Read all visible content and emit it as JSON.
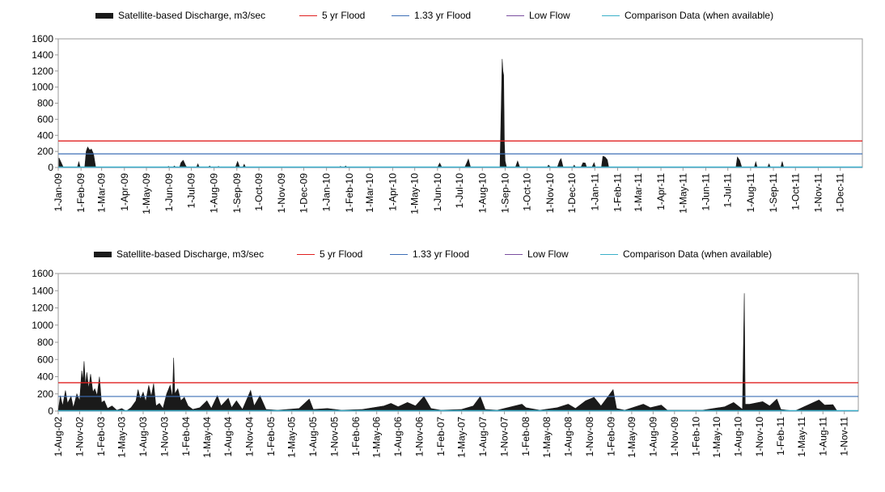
{
  "colors": {
    "discharge": "#1a1a1a",
    "flood5": "#e02020",
    "flood133": "#3d6fb6",
    "lowflow": "#7b4fa0",
    "comparison": "#3bb0c9",
    "frame": "#9a9a9a"
  },
  "legend": {
    "discharge": "Satellite-based Discharge, m3/sec",
    "flood5": "5 yr Flood",
    "flood133": "1.33 yr Flood",
    "lowflow": "Low Flow",
    "comparison": "Comparison Data (when available)"
  },
  "chart_data": [
    {
      "type": "area",
      "ylim": [
        0,
        1600
      ],
      "yticks": [
        0,
        200,
        400,
        600,
        800,
        1000,
        1200,
        1400,
        1600
      ],
      "x_start": "2009-01-01",
      "x_end": "2011-12-31",
      "xtick_labels": [
        "1-Jan-09",
        "1-Feb-09",
        "1-Mar-09",
        "1-Apr-09",
        "1-May-09",
        "1-Jun-09",
        "1-Jul-09",
        "1-Aug-09",
        "1-Sep-09",
        "1-Oct-09",
        "1-Nov-09",
        "1-Dec-09",
        "1-Jan-10",
        "1-Feb-10",
        "1-Mar-10",
        "1-Apr-10",
        "1-May-10",
        "1-Jun-10",
        "1-Jul-10",
        "1-Aug-10",
        "1-Sep-10",
        "1-Oct-10",
        "1-Nov-10",
        "1-Dec-10",
        "1-Jan-11",
        "1-Feb-11",
        "1-Mar-11",
        "1-Apr-11",
        "1-May-11",
        "1-Jun-11",
        "1-Jul-11",
        "1-Aug-11",
        "1-Sep-11",
        "1-Oct-11",
        "1-Nov-11",
        "1-Dec-11"
      ],
      "flood5": 330,
      "flood133": 170,
      "low_flow": 2,
      "discharge": [
        {
          "x": "2009-01-02",
          "y": 120
        },
        {
          "x": "2009-01-05",
          "y": 60
        },
        {
          "x": "2009-01-08",
          "y": 0
        },
        {
          "x": "2009-01-27",
          "y": 0
        },
        {
          "x": "2009-01-29",
          "y": 70
        },
        {
          "x": "2009-01-31",
          "y": 0
        },
        {
          "x": "2009-02-06",
          "y": 0
        },
        {
          "x": "2009-02-08",
          "y": 200
        },
        {
          "x": "2009-02-10",
          "y": 255
        },
        {
          "x": "2009-02-13",
          "y": 215
        },
        {
          "x": "2009-02-15",
          "y": 230
        },
        {
          "x": "2009-02-18",
          "y": 170
        },
        {
          "x": "2009-02-21",
          "y": 0
        },
        {
          "x": "2009-05-29",
          "y": 0
        },
        {
          "x": "2009-05-31",
          "y": 15
        },
        {
          "x": "2009-06-02",
          "y": 0
        },
        {
          "x": "2009-06-06",
          "y": 0
        },
        {
          "x": "2009-06-08",
          "y": 20
        },
        {
          "x": "2009-06-10",
          "y": 0
        },
        {
          "x": "2009-06-15",
          "y": 0
        },
        {
          "x": "2009-06-17",
          "y": 60
        },
        {
          "x": "2009-06-20",
          "y": 90
        },
        {
          "x": "2009-06-23",
          "y": 30
        },
        {
          "x": "2009-06-25",
          "y": 0
        },
        {
          "x": "2009-07-08",
          "y": 0
        },
        {
          "x": "2009-07-10",
          "y": 45
        },
        {
          "x": "2009-07-12",
          "y": 0
        },
        {
          "x": "2009-07-24",
          "y": 0
        },
        {
          "x": "2009-07-26",
          "y": 20
        },
        {
          "x": "2009-07-28",
          "y": 0
        },
        {
          "x": "2009-08-05",
          "y": 0
        },
        {
          "x": "2009-08-07",
          "y": 15
        },
        {
          "x": "2009-08-09",
          "y": 0
        },
        {
          "x": "2009-08-30",
          "y": 0
        },
        {
          "x": "2009-09-02",
          "y": 75
        },
        {
          "x": "2009-09-05",
          "y": 0
        },
        {
          "x": "2009-09-09",
          "y": 0
        },
        {
          "x": "2009-09-11",
          "y": 40
        },
        {
          "x": "2009-09-13",
          "y": 0
        },
        {
          "x": "2010-01-18",
          "y": 0
        },
        {
          "x": "2010-01-20",
          "y": 15
        },
        {
          "x": "2010-01-22",
          "y": 0
        },
        {
          "x": "2010-01-25",
          "y": 0
        },
        {
          "x": "2010-01-27",
          "y": 20
        },
        {
          "x": "2010-01-29",
          "y": 0
        },
        {
          "x": "2010-06-01",
          "y": 0
        },
        {
          "x": "2010-06-04",
          "y": 55
        },
        {
          "x": "2010-06-07",
          "y": 0
        },
        {
          "x": "2010-07-08",
          "y": 0
        },
        {
          "x": "2010-07-11",
          "y": 60
        },
        {
          "x": "2010-07-13",
          "y": 105
        },
        {
          "x": "2010-07-16",
          "y": 0
        },
        {
          "x": "2010-08-25",
          "y": 0
        },
        {
          "x": "2010-08-27",
          "y": 900
        },
        {
          "x": "2010-08-28",
          "y": 1350
        },
        {
          "x": "2010-08-29",
          "y": 1200
        },
        {
          "x": "2010-08-30",
          "y": 1150
        },
        {
          "x": "2010-08-31",
          "y": 300
        },
        {
          "x": "2010-09-01",
          "y": 80
        },
        {
          "x": "2010-09-03",
          "y": 0
        },
        {
          "x": "2010-09-15",
          "y": 0
        },
        {
          "x": "2010-09-18",
          "y": 80
        },
        {
          "x": "2010-09-21",
          "y": 0
        },
        {
          "x": "2010-10-28",
          "y": 0
        },
        {
          "x": "2010-10-30",
          "y": 30
        },
        {
          "x": "2010-11-02",
          "y": 0
        },
        {
          "x": "2010-11-11",
          "y": 0
        },
        {
          "x": "2010-11-14",
          "y": 80
        },
        {
          "x": "2010-11-16",
          "y": 110
        },
        {
          "x": "2010-11-19",
          "y": 0
        },
        {
          "x": "2010-12-02",
          "y": 0
        },
        {
          "x": "2010-12-04",
          "y": 30
        },
        {
          "x": "2010-12-06",
          "y": 0
        },
        {
          "x": "2010-12-13",
          "y": 0
        },
        {
          "x": "2010-12-16",
          "y": 60
        },
        {
          "x": "2010-12-19",
          "y": 55
        },
        {
          "x": "2010-12-21",
          "y": 0
        },
        {
          "x": "2010-12-28",
          "y": 0
        },
        {
          "x": "2010-12-31",
          "y": 60
        },
        {
          "x": "2011-01-02",
          "y": 0
        },
        {
          "x": "2011-01-10",
          "y": 0
        },
        {
          "x": "2011-01-12",
          "y": 140
        },
        {
          "x": "2011-01-15",
          "y": 130
        },
        {
          "x": "2011-01-18",
          "y": 95
        },
        {
          "x": "2011-01-20",
          "y": 0
        },
        {
          "x": "2011-07-12",
          "y": 0
        },
        {
          "x": "2011-07-14",
          "y": 130
        },
        {
          "x": "2011-07-17",
          "y": 90
        },
        {
          "x": "2011-07-20",
          "y": 0
        },
        {
          "x": "2011-08-06",
          "y": 0
        },
        {
          "x": "2011-08-08",
          "y": 70
        },
        {
          "x": "2011-08-10",
          "y": 0
        },
        {
          "x": "2011-08-24",
          "y": 0
        },
        {
          "x": "2011-08-26",
          "y": 45
        },
        {
          "x": "2011-08-28",
          "y": 0
        },
        {
          "x": "2011-09-11",
          "y": 0
        },
        {
          "x": "2011-09-13",
          "y": 75
        },
        {
          "x": "2011-09-15",
          "y": 0
        }
      ]
    },
    {
      "type": "area",
      "ylim": [
        0,
        1600
      ],
      "yticks": [
        0,
        200,
        400,
        600,
        800,
        1000,
        1200,
        1400,
        1600
      ],
      "x_start": "2002-08-01",
      "x_end": "2011-12-31",
      "xtick_labels": [
        "1-Aug-02",
        "1-Nov-02",
        "1-Feb-03",
        "1-May-03",
        "1-Aug-03",
        "1-Nov-03",
        "1-Feb-04",
        "1-May-04",
        "1-Aug-04",
        "1-Nov-04",
        "1-Feb-05",
        "1-May-05",
        "1-Aug-05",
        "1-Nov-05",
        "1-Feb-06",
        "1-May-06",
        "1-Aug-06",
        "1-Nov-06",
        "1-Feb-07",
        "1-May-07",
        "1-Aug-07",
        "1-Nov-07",
        "1-Feb-08",
        "1-May-08",
        "1-Aug-08",
        "1-Nov-08",
        "1-Feb-09",
        "1-May-09",
        "1-Aug-09",
        "1-Nov-09",
        "1-Feb-10",
        "1-May-10",
        "1-Aug-10",
        "1-Nov-10",
        "1-Feb-11",
        "1-May-11",
        "1-Aug-11",
        "1-Nov-11"
      ],
      "flood5": 330,
      "flood133": 170,
      "low_flow": 2,
      "discharge": [
        {
          "x": "2002-08-01",
          "y": 0
        },
        {
          "x": "2002-08-10",
          "y": 180
        },
        {
          "x": "2002-08-20",
          "y": 60
        },
        {
          "x": "2002-09-01",
          "y": 240
        },
        {
          "x": "2002-09-10",
          "y": 90
        },
        {
          "x": "2002-09-25",
          "y": 170
        },
        {
          "x": "2002-10-05",
          "y": 40
        },
        {
          "x": "2002-10-20",
          "y": 200
        },
        {
          "x": "2002-11-01",
          "y": 120
        },
        {
          "x": "2002-11-10",
          "y": 470
        },
        {
          "x": "2002-11-15",
          "y": 350
        },
        {
          "x": "2002-11-20",
          "y": 580
        },
        {
          "x": "2002-11-26",
          "y": 300
        },
        {
          "x": "2002-12-02",
          "y": 450
        },
        {
          "x": "2002-12-10",
          "y": 260
        },
        {
          "x": "2002-12-18",
          "y": 430
        },
        {
          "x": "2002-12-28",
          "y": 220
        },
        {
          "x": "2003-01-05",
          "y": 260
        },
        {
          "x": "2003-01-15",
          "y": 180
        },
        {
          "x": "2003-01-25",
          "y": 400
        },
        {
          "x": "2003-02-03",
          "y": 100
        },
        {
          "x": "2003-02-15",
          "y": 120
        },
        {
          "x": "2003-03-01",
          "y": 30
        },
        {
          "x": "2003-03-20",
          "y": 60
        },
        {
          "x": "2003-04-10",
          "y": 10
        },
        {
          "x": "2003-05-01",
          "y": 30
        },
        {
          "x": "2003-05-20",
          "y": 0
        },
        {
          "x": "2003-06-10",
          "y": 40
        },
        {
          "x": "2003-07-01",
          "y": 120
        },
        {
          "x": "2003-07-10",
          "y": 250
        },
        {
          "x": "2003-07-20",
          "y": 140
        },
        {
          "x": "2003-08-01",
          "y": 220
        },
        {
          "x": "2003-08-12",
          "y": 110
        },
        {
          "x": "2003-08-25",
          "y": 300
        },
        {
          "x": "2003-09-05",
          "y": 170
        },
        {
          "x": "2003-09-15",
          "y": 320
        },
        {
          "x": "2003-09-25",
          "y": 60
        },
        {
          "x": "2003-10-10",
          "y": 90
        },
        {
          "x": "2003-10-25",
          "y": 30
        },
        {
          "x": "2003-11-10",
          "y": 200
        },
        {
          "x": "2003-11-25",
          "y": 300
        },
        {
          "x": "2003-12-05",
          "y": 160
        },
        {
          "x": "2003-12-10",
          "y": 620
        },
        {
          "x": "2003-12-15",
          "y": 200
        },
        {
          "x": "2003-12-28",
          "y": 260
        },
        {
          "x": "2004-01-10",
          "y": 120
        },
        {
          "x": "2004-01-25",
          "y": 160
        },
        {
          "x": "2004-02-10",
          "y": 60
        },
        {
          "x": "2004-03-01",
          "y": 20
        },
        {
          "x": "2004-04-01",
          "y": 40
        },
        {
          "x": "2004-05-01",
          "y": 120
        },
        {
          "x": "2004-05-20",
          "y": 30
        },
        {
          "x": "2004-06-15",
          "y": 180
        },
        {
          "x": "2004-07-01",
          "y": 60
        },
        {
          "x": "2004-08-01",
          "y": 150
        },
        {
          "x": "2004-08-15",
          "y": 40
        },
        {
          "x": "2004-09-05",
          "y": 120
        },
        {
          "x": "2004-10-01",
          "y": 20
        },
        {
          "x": "2004-11-05",
          "y": 240
        },
        {
          "x": "2004-11-20",
          "y": 60
        },
        {
          "x": "2004-12-15",
          "y": 180
        },
        {
          "x": "2005-01-10",
          "y": 20
        },
        {
          "x": "2005-03-01",
          "y": 10
        },
        {
          "x": "2005-06-01",
          "y": 30
        },
        {
          "x": "2005-07-15",
          "y": 140
        },
        {
          "x": "2005-08-01",
          "y": 20
        },
        {
          "x": "2005-10-01",
          "y": 30
        },
        {
          "x": "2005-12-01",
          "y": 10
        },
        {
          "x": "2006-03-01",
          "y": 20
        },
        {
          "x": "2006-06-01",
          "y": 60
        },
        {
          "x": "2006-07-01",
          "y": 90
        },
        {
          "x": "2006-08-01",
          "y": 50
        },
        {
          "x": "2006-09-10",
          "y": 100
        },
        {
          "x": "2006-10-15",
          "y": 60
        },
        {
          "x": "2006-11-20",
          "y": 170
        },
        {
          "x": "2006-12-20",
          "y": 30
        },
        {
          "x": "2007-02-01",
          "y": 10
        },
        {
          "x": "2007-05-01",
          "y": 20
        },
        {
          "x": "2007-06-20",
          "y": 60
        },
        {
          "x": "2007-07-20",
          "y": 170
        },
        {
          "x": "2007-08-10",
          "y": 20
        },
        {
          "x": "2007-10-01",
          "y": 10
        },
        {
          "x": "2008-01-15",
          "y": 80
        },
        {
          "x": "2008-02-01",
          "y": 40
        },
        {
          "x": "2008-04-01",
          "y": 10
        },
        {
          "x": "2008-06-15",
          "y": 40
        },
        {
          "x": "2008-08-01",
          "y": 80
        },
        {
          "x": "2008-09-01",
          "y": 30
        },
        {
          "x": "2008-10-15",
          "y": 120
        },
        {
          "x": "2008-11-20",
          "y": 160
        },
        {
          "x": "2008-12-20",
          "y": 60
        },
        {
          "x": "2009-02-10",
          "y": 250
        },
        {
          "x": "2009-02-25",
          "y": 30
        },
        {
          "x": "2009-04-01",
          "y": 10
        },
        {
          "x": "2009-06-20",
          "y": 80
        },
        {
          "x": "2009-07-20",
          "y": 40
        },
        {
          "x": "2009-09-05",
          "y": 70
        },
        {
          "x": "2009-10-01",
          "y": 10
        },
        {
          "x": "2010-03-01",
          "y": 10
        },
        {
          "x": "2010-06-05",
          "y": 50
        },
        {
          "x": "2010-07-13",
          "y": 100
        },
        {
          "x": "2010-08-20",
          "y": 20
        },
        {
          "x": "2010-08-28",
          "y": 1370
        },
        {
          "x": "2010-09-01",
          "y": 80
        },
        {
          "x": "2010-09-20",
          "y": 80
        },
        {
          "x": "2010-11-15",
          "y": 110
        },
        {
          "x": "2010-12-15",
          "y": 60
        },
        {
          "x": "2011-01-15",
          "y": 140
        },
        {
          "x": "2011-02-01",
          "y": 20
        },
        {
          "x": "2011-04-01",
          "y": 0
        },
        {
          "x": "2011-07-15",
          "y": 130
        },
        {
          "x": "2011-08-08",
          "y": 70
        },
        {
          "x": "2011-09-13",
          "y": 75
        },
        {
          "x": "2011-10-01",
          "y": 0
        },
        {
          "x": "2011-12-31",
          "y": 0
        }
      ]
    }
  ]
}
